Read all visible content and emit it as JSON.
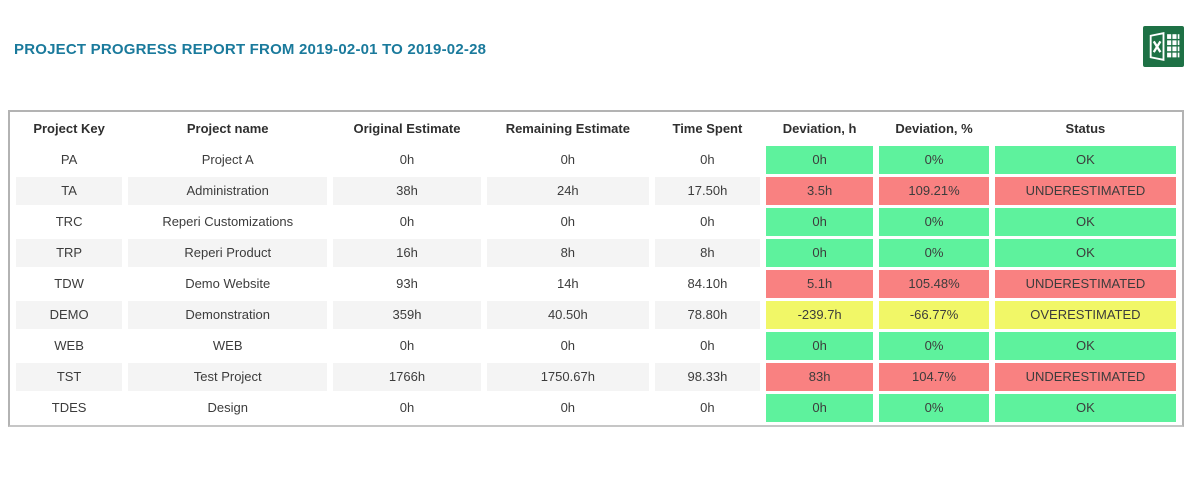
{
  "header": {
    "title": "PROJECT PROGRESS REPORT FROM 2019-02-01 TO 2019-02-28",
    "export_icon": "excel-icon"
  },
  "table": {
    "columns": [
      "Project Key",
      "Project name",
      "Original Estimate",
      "Remaining Estimate",
      "Time Spent",
      "Deviation, h",
      "Deviation, %",
      "Status"
    ],
    "rows": [
      {
        "key": "PA",
        "name": "Project A",
        "original": "0h",
        "remaining": "0h",
        "spent": "0h",
        "dev_h": "0h",
        "dev_pct": "0%",
        "status": "OK",
        "status_type": "ok"
      },
      {
        "key": "TA",
        "name": "Administration",
        "original": "38h",
        "remaining": "24h",
        "spent": "17.50h",
        "dev_h": "3.5h",
        "dev_pct": "109.21%",
        "status": "UNDERESTIMATED",
        "status_type": "under"
      },
      {
        "key": "TRC",
        "name": "Reperi Customizations",
        "original": "0h",
        "remaining": "0h",
        "spent": "0h",
        "dev_h": "0h",
        "dev_pct": "0%",
        "status": "OK",
        "status_type": "ok"
      },
      {
        "key": "TRP",
        "name": "Reperi Product",
        "original": "16h",
        "remaining": "8h",
        "spent": "8h",
        "dev_h": "0h",
        "dev_pct": "0%",
        "status": "OK",
        "status_type": "ok"
      },
      {
        "key": "TDW",
        "name": "Demo Website",
        "original": "93h",
        "remaining": "14h",
        "spent": "84.10h",
        "dev_h": "5.1h",
        "dev_pct": "105.48%",
        "status": "UNDERESTIMATED",
        "status_type": "under"
      },
      {
        "key": "DEMO",
        "name": "Demonstration",
        "original": "359h",
        "remaining": "40.50h",
        "spent": "78.80h",
        "dev_h": "-239.7h",
        "dev_pct": "-66.77%",
        "status": "OVERESTIMATED",
        "status_type": "over"
      },
      {
        "key": "WEB",
        "name": "WEB",
        "original": "0h",
        "remaining": "0h",
        "spent": "0h",
        "dev_h": "0h",
        "dev_pct": "0%",
        "status": "OK",
        "status_type": "ok"
      },
      {
        "key": "TST",
        "name": "Test Project",
        "original": "1766h",
        "remaining": "1750.67h",
        "spent": "98.33h",
        "dev_h": "83h",
        "dev_pct": "104.7%",
        "status": "UNDERESTIMATED",
        "status_type": "under"
      },
      {
        "key": "TDES",
        "name": "Design",
        "original": "0h",
        "remaining": "0h",
        "spent": "0h",
        "dev_h": "0h",
        "dev_pct": "0%",
        "status": "OK",
        "status_type": "ok"
      }
    ]
  },
  "colors": {
    "title": "#1a7a9c",
    "status_ok": "#5ef29d",
    "status_underestimated": "#f98181",
    "status_overestimated": "#f1f767",
    "excel_green": "#1e7145",
    "stripe": "#f4f4f4"
  }
}
